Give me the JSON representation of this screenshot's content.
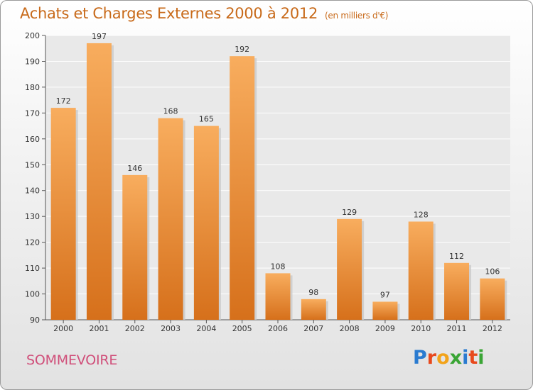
{
  "header": {
    "title": "Achats et Charges Externes 2000 à 2012",
    "subtitle": "(en milliers d'€)"
  },
  "footer": {
    "commune": "SOMMEVOIRE",
    "brand": "Proxiti",
    "brand_letters": [
      {
        "char": "P",
        "color": "#2a7bd0"
      },
      {
        "char": "r",
        "color": "#e8491d"
      },
      {
        "char": "o",
        "color": "#f2a31a"
      },
      {
        "char": "x",
        "color": "#3aa535"
      },
      {
        "char": "i",
        "color": "#2a7bd0"
      },
      {
        "char": "t",
        "color": "#e8491d"
      },
      {
        "char": "i",
        "color": "#3aa535"
      }
    ]
  },
  "colors": {
    "title": "#c86a1a",
    "commune": "#d04f7a",
    "bar_light": "#f7a95a",
    "bar_dark": "#d9731d",
    "grid": "#ffffff"
  },
  "chart_data": {
    "type": "bar",
    "categories": [
      "2000",
      "2001",
      "2002",
      "2003",
      "2004",
      "2005",
      "2006",
      "2007",
      "2008",
      "2009",
      "2010",
      "2011",
      "2012"
    ],
    "values": [
      172,
      197,
      146,
      168,
      165,
      192,
      108,
      98,
      129,
      97,
      128,
      112,
      106
    ],
    "ylim": [
      90,
      200
    ],
    "yticks": [
      90,
      100,
      110,
      120,
      130,
      140,
      150,
      160,
      170,
      180,
      190,
      200
    ],
    "grid": true,
    "xlabel": "",
    "ylabel": ""
  }
}
